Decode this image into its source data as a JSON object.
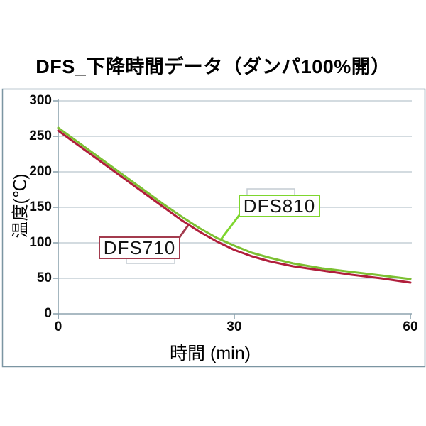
{
  "page_title": "DFS_下降時間データ（ダンパ100%開）",
  "chart_data": {
    "type": "line",
    "title": "DFS_下降時間データ（ダンパ100%開）",
    "xlabel": "時間 (min)",
    "ylabel": "温度(℃)",
    "xlim": [
      0,
      60
    ],
    "ylim": [
      0,
      300
    ],
    "x_ticks": [
      0,
      30,
      60
    ],
    "y_ticks": [
      0,
      50,
      100,
      150,
      200,
      250,
      300
    ],
    "grid": true,
    "legend_position": "inline-callouts",
    "x": [
      0,
      3,
      6,
      9,
      12,
      15,
      18,
      21,
      24,
      27,
      30,
      33,
      36,
      40,
      45,
      50,
      55,
      60
    ],
    "series": [
      {
        "name": "DFS710",
        "color": "#B01E3B",
        "callout_border": "#A33B4E",
        "values": [
          258,
          240,
          222,
          204,
          186,
          168,
          150,
          132,
          116,
          102,
          90,
          81,
          74,
          67,
          61,
          55,
          50,
          44
        ]
      },
      {
        "name": "DFS810",
        "color": "#7CC032",
        "callout_border": "#7ED62E",
        "values": [
          262,
          244,
          226,
          208,
          190,
          172,
          154,
          137,
          121,
          107,
          96,
          86,
          79,
          71,
          64,
          59,
          54,
          49
        ]
      }
    ],
    "colors": {
      "frame_border": "#7B95A2",
      "gridline": "#B9C5CD",
      "axis": "#8DA3AF",
      "bracket": "#C3CCD2",
      "text": "#000000"
    }
  }
}
